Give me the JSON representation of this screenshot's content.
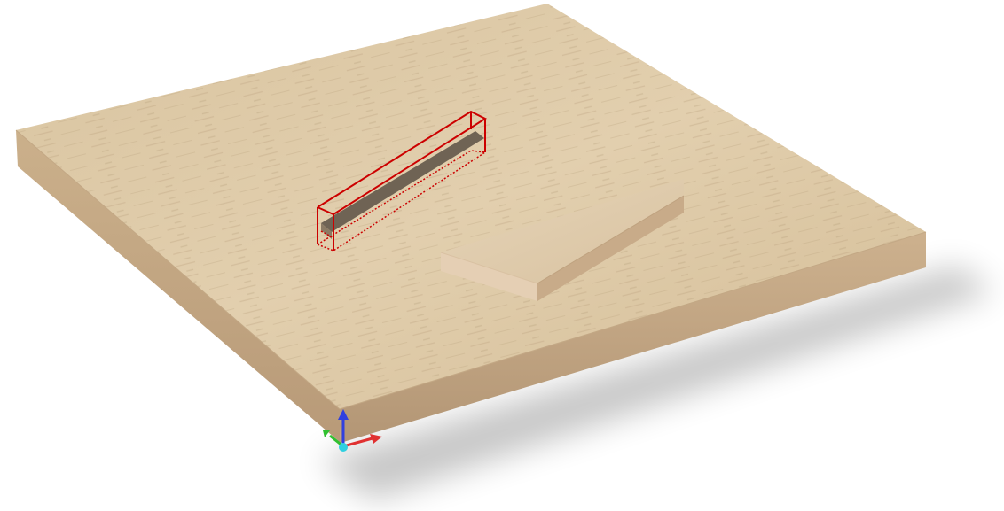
{
  "viewport": {
    "background_color": "#ffffff",
    "view_mode": "3d-perspective"
  },
  "scene": {
    "objects": [
      {
        "name": "base-board",
        "material": "beech-wood",
        "color": "#dcc7a3"
      },
      {
        "name": "slot-cut",
        "color": "#6f6354"
      },
      {
        "name": "angled-piece",
        "material": "beech-wood",
        "color": "#dcc7a3"
      }
    ],
    "selection": {
      "target": "slot-cut",
      "highlight_color": "#cc0000",
      "style": "bounding-box"
    }
  },
  "axis_gizmo": {
    "x_color": "#e03030",
    "y_color": "#30c030",
    "z_color": "#3040e0",
    "origin_color": "#30d0e0"
  }
}
